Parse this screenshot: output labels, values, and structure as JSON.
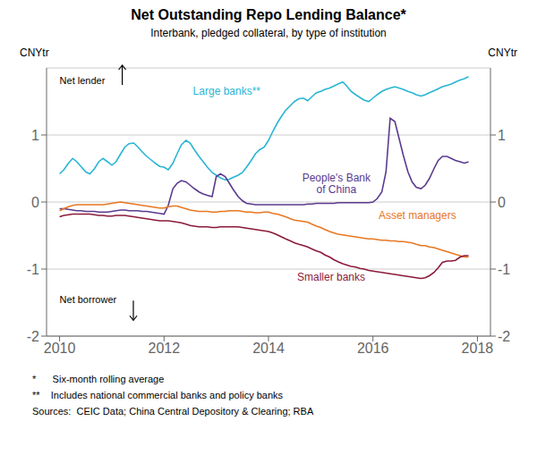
{
  "chart_data": {
    "type": "line",
    "title": "Net Outstanding Repo Lending Balance*",
    "subtitle": "Interbank, pledged collateral, by type of institution",
    "ylabel": "CNYtr",
    "y2label": "CNYtr",
    "xlim": [
      2009.75,
      2018.25
    ],
    "xticks": [
      2010,
      2012,
      2014,
      2016,
      2018
    ],
    "ylim": [
      -2,
      2
    ],
    "yticks": [
      -2,
      -1,
      0,
      1
    ],
    "y2lim": [
      -2,
      2
    ],
    "y2ticks": [
      -2,
      -1,
      0,
      1
    ],
    "grid": true,
    "x": [
      2010.0,
      2010.08,
      2010.17,
      2010.25,
      2010.33,
      2010.42,
      2010.5,
      2010.58,
      2010.67,
      2010.75,
      2010.83,
      2010.92,
      2011.0,
      2011.08,
      2011.17,
      2011.25,
      2011.33,
      2011.42,
      2011.5,
      2011.58,
      2011.67,
      2011.75,
      2011.83,
      2011.92,
      2012.0,
      2012.08,
      2012.17,
      2012.25,
      2012.33,
      2012.42,
      2012.5,
      2012.58,
      2012.67,
      2012.75,
      2012.83,
      2012.92,
      2013.0,
      2013.08,
      2013.17,
      2013.25,
      2013.33,
      2013.42,
      2013.5,
      2013.58,
      2013.67,
      2013.75,
      2013.83,
      2013.92,
      2014.0,
      2014.08,
      2014.17,
      2014.25,
      2014.33,
      2014.42,
      2014.5,
      2014.58,
      2014.67,
      2014.75,
      2014.83,
      2014.92,
      2015.0,
      2015.08,
      2015.17,
      2015.25,
      2015.33,
      2015.42,
      2015.5,
      2015.58,
      2015.67,
      2015.75,
      2015.83,
      2015.92,
      2016.0,
      2016.08,
      2016.17,
      2016.25,
      2016.33,
      2016.42,
      2016.5,
      2016.58,
      2016.67,
      2016.75,
      2016.83,
      2016.92,
      2017.0,
      2017.08,
      2017.17,
      2017.25,
      2017.33,
      2017.42,
      2017.5,
      2017.58,
      2017.67,
      2017.75,
      2017.83
    ],
    "series": [
      {
        "name": "Large banks**",
        "color": "#29B5D4",
        "values": [
          0.42,
          0.48,
          0.58,
          0.65,
          0.6,
          0.52,
          0.45,
          0.42,
          0.5,
          0.6,
          0.65,
          0.6,
          0.55,
          0.6,
          0.72,
          0.82,
          0.87,
          0.88,
          0.82,
          0.75,
          0.68,
          0.63,
          0.58,
          0.53,
          0.52,
          0.48,
          0.58,
          0.72,
          0.85,
          0.92,
          0.88,
          0.78,
          0.68,
          0.6,
          0.52,
          0.44,
          0.4,
          0.36,
          0.33,
          0.34,
          0.37,
          0.4,
          0.44,
          0.52,
          0.62,
          0.72,
          0.78,
          0.82,
          0.92,
          1.05,
          1.18,
          1.28,
          1.37,
          1.44,
          1.5,
          1.54,
          1.55,
          1.51,
          1.57,
          1.63,
          1.65,
          1.68,
          1.7,
          1.73,
          1.76,
          1.79,
          1.73,
          1.65,
          1.6,
          1.56,
          1.52,
          1.5,
          1.55,
          1.6,
          1.65,
          1.68,
          1.7,
          1.72,
          1.7,
          1.68,
          1.65,
          1.63,
          1.6,
          1.58,
          1.6,
          1.63,
          1.66,
          1.69,
          1.72,
          1.74,
          1.76,
          1.79,
          1.82,
          1.84,
          1.87
        ]
      },
      {
        "name": "People's Bank\nof China",
        "color": "#5B3A8E",
        "values": [
          -0.1,
          -0.1,
          -0.11,
          -0.12,
          -0.13,
          -0.13,
          -0.14,
          -0.14,
          -0.14,
          -0.15,
          -0.15,
          -0.15,
          -0.14,
          -0.13,
          -0.12,
          -0.12,
          -0.13,
          -0.13,
          -0.13,
          -0.14,
          -0.14,
          -0.15,
          -0.16,
          -0.17,
          -0.18,
          -0.05,
          0.2,
          0.28,
          0.32,
          0.3,
          0.25,
          0.2,
          0.15,
          0.12,
          0.1,
          0.08,
          0.38,
          0.42,
          0.38,
          0.28,
          0.18,
          0.08,
          0.02,
          -0.02,
          -0.03,
          -0.04,
          -0.04,
          -0.04,
          -0.04,
          -0.04,
          -0.04,
          -0.04,
          -0.04,
          -0.04,
          -0.04,
          -0.04,
          -0.04,
          -0.03,
          -0.03,
          -0.02,
          -0.02,
          -0.02,
          -0.02,
          -0.02,
          -0.01,
          -0.01,
          -0.01,
          -0.01,
          -0.01,
          -0.01,
          -0.01,
          -0.01,
          0.0,
          0.05,
          0.15,
          0.45,
          1.25,
          1.2,
          0.95,
          0.7,
          0.45,
          0.3,
          0.22,
          0.2,
          0.25,
          0.35,
          0.5,
          0.62,
          0.68,
          0.68,
          0.65,
          0.62,
          0.6,
          0.58,
          0.6
        ]
      },
      {
        "name": "Asset managers",
        "color": "#E87722",
        "values": [
          -0.13,
          -0.1,
          -0.07,
          -0.05,
          -0.04,
          -0.04,
          -0.04,
          -0.04,
          -0.04,
          -0.04,
          -0.04,
          -0.03,
          -0.02,
          -0.01,
          0.0,
          -0.01,
          -0.02,
          -0.03,
          -0.04,
          -0.05,
          -0.06,
          -0.07,
          -0.08,
          -0.09,
          -0.09,
          -0.07,
          -0.06,
          -0.06,
          -0.08,
          -0.1,
          -0.12,
          -0.13,
          -0.14,
          -0.14,
          -0.14,
          -0.15,
          -0.15,
          -0.14,
          -0.14,
          -0.13,
          -0.13,
          -0.13,
          -0.14,
          -0.15,
          -0.15,
          -0.16,
          -0.16,
          -0.15,
          -0.15,
          -0.17,
          -0.18,
          -0.2,
          -0.22,
          -0.25,
          -0.27,
          -0.28,
          -0.29,
          -0.3,
          -0.33,
          -0.36,
          -0.38,
          -0.41,
          -0.44,
          -0.46,
          -0.48,
          -0.49,
          -0.5,
          -0.51,
          -0.52,
          -0.53,
          -0.54,
          -0.55,
          -0.55,
          -0.56,
          -0.57,
          -0.57,
          -0.58,
          -0.58,
          -0.59,
          -0.59,
          -0.6,
          -0.61,
          -0.63,
          -0.65,
          -0.65,
          -0.67,
          -0.68,
          -0.7,
          -0.72,
          -0.74,
          -0.76,
          -0.78,
          -0.8,
          -0.82,
          -0.82
        ]
      },
      {
        "name": "Smaller banks",
        "color": "#8B1A3A",
        "values": [
          -0.22,
          -0.2,
          -0.19,
          -0.18,
          -0.18,
          -0.18,
          -0.18,
          -0.18,
          -0.19,
          -0.2,
          -0.2,
          -0.21,
          -0.21,
          -0.2,
          -0.2,
          -0.2,
          -0.21,
          -0.22,
          -0.23,
          -0.24,
          -0.25,
          -0.26,
          -0.27,
          -0.28,
          -0.28,
          -0.28,
          -0.29,
          -0.3,
          -0.31,
          -0.33,
          -0.35,
          -0.36,
          -0.37,
          -0.37,
          -0.37,
          -0.38,
          -0.38,
          -0.37,
          -0.37,
          -0.37,
          -0.37,
          -0.37,
          -0.38,
          -0.39,
          -0.4,
          -0.41,
          -0.42,
          -0.43,
          -0.44,
          -0.46,
          -0.49,
          -0.52,
          -0.55,
          -0.58,
          -0.61,
          -0.63,
          -0.65,
          -0.67,
          -0.7,
          -0.73,
          -0.75,
          -0.79,
          -0.82,
          -0.86,
          -0.89,
          -0.92,
          -0.94,
          -0.96,
          -0.97,
          -0.99,
          -1.0,
          -1.02,
          -1.03,
          -1.04,
          -1.05,
          -1.06,
          -1.07,
          -1.08,
          -1.09,
          -1.1,
          -1.11,
          -1.12,
          -1.13,
          -1.14,
          -1.13,
          -1.1,
          -1.05,
          -0.98,
          -0.9,
          -0.88,
          -0.88,
          -0.87,
          -0.82,
          -0.8,
          -0.8
        ]
      }
    ],
    "annotations": [
      "Net lender",
      "Net borrower"
    ],
    "footnotes": [
      "*      Six-month rolling average",
      "**    Includes national commercial banks and policy banks",
      "Sources:  CEIC Data; China Central Depository & Clearing; RBA"
    ]
  }
}
